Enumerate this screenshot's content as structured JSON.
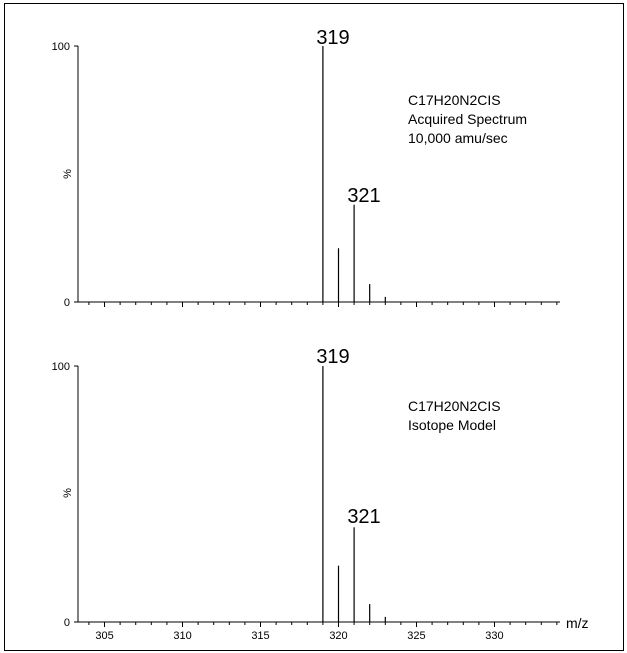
{
  "chart_data": [
    {
      "type": "bar",
      "x_values": [
        319,
        320,
        321,
        322,
        323
      ],
      "values": [
        100,
        21,
        38,
        7,
        2
      ],
      "ylim": [
        0,
        100
      ],
      "xlim": [
        303.3,
        334.2
      ],
      "ylabel": "%",
      "yticks": [
        "0",
        "100"
      ],
      "peak_labels": [
        "319",
        "321"
      ],
      "annotation": [
        "C17H20N2CIS",
        "Acquired Spectrum",
        "10,000 amu/sec"
      ]
    },
    {
      "type": "bar",
      "x_values": [
        319,
        320,
        321,
        322,
        323
      ],
      "values": [
        100,
        22,
        37,
        7,
        2
      ],
      "ylim": [
        0,
        100
      ],
      "xlim": [
        303.3,
        334.2
      ],
      "ylabel": "%",
      "xlabel": "m/z",
      "yticks": [
        "0",
        "100"
      ],
      "xticks": [
        "305",
        "310",
        "315",
        "320",
        "325",
        "330"
      ],
      "peak_labels": [
        "319",
        "321"
      ],
      "annotation": [
        "C17H20N2CIS",
        "Isotope Model"
      ]
    }
  ]
}
